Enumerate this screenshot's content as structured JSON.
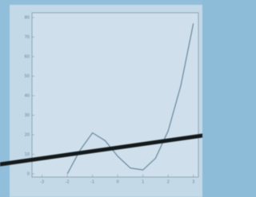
{
  "chart_data": {
    "type": "line",
    "x": [
      -2,
      -1.5,
      -1,
      -0.5,
      0,
      0.5,
      1,
      1.5,
      2,
      2.5,
      3
    ],
    "series": [
      {
        "color": "#5d7f96",
        "values": [
          0,
          12,
          21,
          17,
          9,
          3,
          2,
          8,
          22,
          45,
          77
        ]
      }
    ],
    "xlim": [
      -3.4,
      3.2
    ],
    "xticks": [
      -3,
      -2,
      -1,
      0,
      1,
      2,
      3
    ],
    "ylim": [
      0,
      80
    ],
    "yticks": [
      0,
      10,
      20,
      30,
      40,
      50,
      60,
      70,
      80
    ]
  }
}
